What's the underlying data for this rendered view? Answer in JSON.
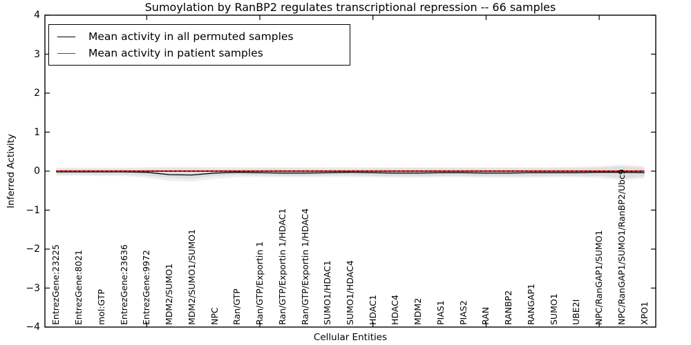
{
  "figure": {
    "title": "Sumoylation by RanBP2 regulates transcriptional repression -- 66 samples",
    "xlabel": "Cellular Entities",
    "ylabel": "Inferred Activity"
  },
  "legend": {
    "entries": [
      {
        "label": "Mean activity in all permuted samples",
        "color": "#000000"
      },
      {
        "label": "Mean activity in patient samples",
        "color": "#ff0000"
      }
    ]
  },
  "chart_data": {
    "type": "line",
    "title": "Sumoylation by RanBP2 regulates transcriptional repression -- 66 samples",
    "xlabel": "Cellular Entities",
    "ylabel": "Inferred Activity",
    "ylim": [
      -4,
      4
    ],
    "yticks": [
      -4,
      -3,
      -2,
      -1,
      0,
      1,
      2,
      3,
      4
    ],
    "xticks_top": [
      5,
      10,
      15,
      20,
      25
    ],
    "grid": false,
    "legend_position": "upper left",
    "categories": [
      "EntrezGene:23225",
      "EntrezGene:8021",
      "mol:GTP",
      "EntrezGene:23636",
      "EntrezGene:9972",
      "MDM2/SUMO1",
      "MDM2/SUMO1/SUMO1",
      "NPC",
      "Ran/GTP",
      "Ran/GTP/Exportin 1",
      "Ran/GTP/Exportin 1/HDAC1",
      "Ran/GTP/Exportin 1/HDAC4",
      "SUMO1/HDAC1",
      "SUMO1/HDAC4",
      "HDAC1",
      "HDAC4",
      "MDM2",
      "PIAS1",
      "PIAS2",
      "RAN",
      "RANBP2",
      "RANGAP1",
      "SUMO1",
      "UBE2I",
      "NPC/RanGAP1/SUMO1",
      "NPC/RanGAP1/SUMO1/RanBP2/Ubc9",
      "XPO1"
    ],
    "series": [
      {
        "name": "Mean activity in all permuted samples",
        "color": "#000000",
        "style": "solid",
        "values": [
          -0.02,
          -0.02,
          -0.02,
          -0.02,
          -0.03,
          -0.09,
          -0.1,
          -0.05,
          -0.03,
          -0.04,
          -0.05,
          -0.05,
          -0.04,
          -0.03,
          -0.04,
          -0.05,
          -0.05,
          -0.04,
          -0.04,
          -0.05,
          -0.05,
          -0.04,
          -0.04,
          -0.04,
          -0.03,
          -0.03,
          -0.04
        ]
      },
      {
        "name": "Mean activity in patient samples",
        "color": "#ff0000",
        "style": "solid",
        "values": [
          0.0,
          0.0,
          0.0,
          0.0,
          0.0,
          0.0,
          0.0,
          0.0,
          0.0,
          0.0,
          0.0,
          0.0,
          0.0,
          0.0,
          0.0,
          0.0,
          0.0,
          0.0,
          0.0,
          0.0,
          0.0,
          0.0,
          0.0,
          0.0,
          0.0,
          0.0,
          0.0
        ]
      }
    ],
    "zero_line": {
      "y": 0,
      "color": "#000000",
      "style": "dotted"
    },
    "band_inner": {
      "color": "#dedede",
      "upper": [
        0.06,
        0.06,
        0.06,
        0.06,
        0.06,
        0.07,
        0.07,
        0.06,
        0.06,
        0.07,
        0.07,
        0.07,
        0.06,
        0.06,
        0.07,
        0.07,
        0.07,
        0.07,
        0.07,
        0.07,
        0.07,
        0.07,
        0.07,
        0.08,
        0.09,
        0.12,
        0.09
      ],
      "lower": [
        -0.08,
        -0.08,
        -0.09,
        -0.09,
        -0.12,
        -0.17,
        -0.19,
        -0.13,
        -0.1,
        -0.11,
        -0.12,
        -0.12,
        -0.11,
        -0.11,
        -0.12,
        -0.13,
        -0.13,
        -0.12,
        -0.12,
        -0.13,
        -0.13,
        -0.13,
        -0.12,
        -0.12,
        -0.12,
        -0.18,
        -0.14
      ]
    },
    "band_outer": {
      "color": "#efefef",
      "upper": [
        0.09,
        0.09,
        0.09,
        0.09,
        0.1,
        0.11,
        0.11,
        0.1,
        0.1,
        0.1,
        0.1,
        0.1,
        0.1,
        0.1,
        0.1,
        0.1,
        0.1,
        0.1,
        0.1,
        0.1,
        0.1,
        0.1,
        0.1,
        0.11,
        0.13,
        0.17,
        0.13
      ],
      "lower": [
        -0.12,
        -0.12,
        -0.13,
        -0.13,
        -0.17,
        -0.25,
        -0.27,
        -0.2,
        -0.15,
        -0.15,
        -0.16,
        -0.16,
        -0.15,
        -0.15,
        -0.16,
        -0.17,
        -0.17,
        -0.16,
        -0.16,
        -0.17,
        -0.17,
        -0.17,
        -0.16,
        -0.16,
        -0.17,
        -0.24,
        -0.19
      ]
    }
  }
}
